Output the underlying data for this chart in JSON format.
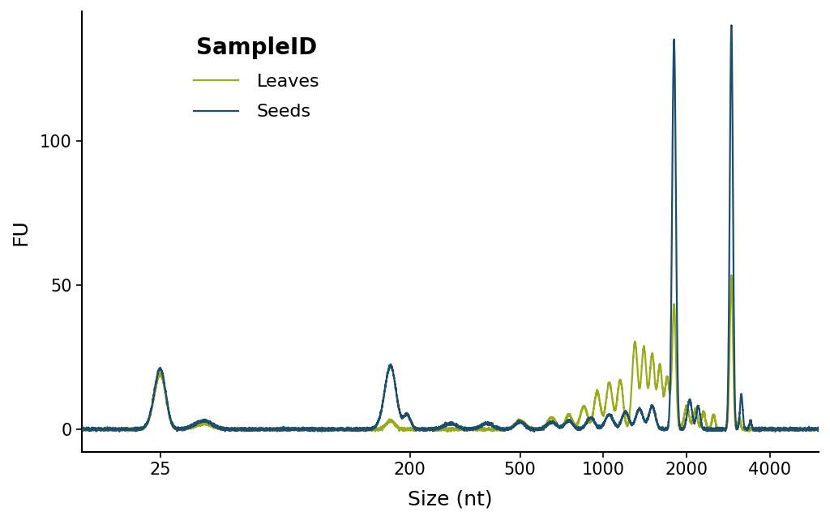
{
  "title": "SampleID",
  "xlabel": "Size (nt)",
  "ylabel": "FU",
  "seeds_color": "#1d4e6e",
  "leaves_color": "#9aab1a",
  "background_color": "#ffffff",
  "seeds_label": "Seeds",
  "leaves_label": "Leaves",
  "xlim": [
    13,
    6000
  ],
  "ylim": [
    -8,
    145
  ],
  "yticks": [
    0,
    50,
    100
  ],
  "xtick_positions": [
    25,
    200,
    500,
    1000,
    2000,
    4000
  ],
  "xtick_labels": [
    "25",
    "200",
    "500",
    "1000",
    "2000",
    "4000"
  ],
  "title_fontsize": 20,
  "label_fontsize": 18,
  "tick_fontsize": 15,
  "legend_fontsize": 16,
  "line_width": 1.6
}
